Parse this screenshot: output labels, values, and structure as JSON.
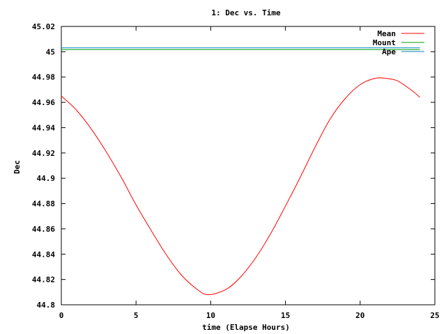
{
  "chart_data": {
    "type": "line",
    "title": "1: Dec vs. Time",
    "xlabel": "time (Elapse Hours)",
    "ylabel": "Dec",
    "xlim": [
      0,
      25
    ],
    "ylim": [
      44.8,
      45.02
    ],
    "x_ticks": [
      0,
      5,
      10,
      15,
      20,
      25
    ],
    "x_tick_labels": [
      "0",
      "5",
      "10",
      "15",
      "20",
      "25"
    ],
    "y_ticks": [
      44.8,
      44.82,
      44.84,
      44.86,
      44.88,
      44.9,
      44.92,
      44.94,
      44.96,
      44.98,
      45,
      45.02
    ],
    "y_tick_labels": [
      "44.8",
      "44.82",
      "44.84",
      "44.86",
      "44.88",
      "44.9",
      "44.92",
      "44.94",
      "44.96",
      "44.98",
      "45",
      "45.02"
    ],
    "grid": false,
    "legend_position": "top-right",
    "series": [
      {
        "name": "Mean",
        "color": "#ff0000",
        "x": [
          0,
          1,
          2,
          3,
          4,
          5,
          6,
          7,
          8,
          9,
          9.8,
          11,
          12,
          13,
          14,
          15,
          16,
          17,
          18,
          19,
          20,
          21,
          21.7,
          22.5,
          23.5,
          24
        ],
        "y": [
          44.965,
          44.954,
          44.939,
          44.921,
          44.901,
          44.879,
          44.859,
          44.84,
          44.824,
          44.813,
          44.808,
          44.812,
          44.822,
          44.837,
          44.856,
          44.878,
          44.901,
          44.925,
          44.947,
          44.963,
          44.974,
          44.979,
          44.979,
          44.977,
          44.969,
          44.964
        ]
      },
      {
        "name": "Mount",
        "color": "#00a000",
        "x": [
          0,
          24
        ],
        "y": [
          45.0017,
          45.0017
        ]
      },
      {
        "name": "Ape",
        "color": "#0080c0",
        "x": [
          0,
          24
        ],
        "y": [
          45.0031,
          45.0031
        ]
      }
    ]
  }
}
